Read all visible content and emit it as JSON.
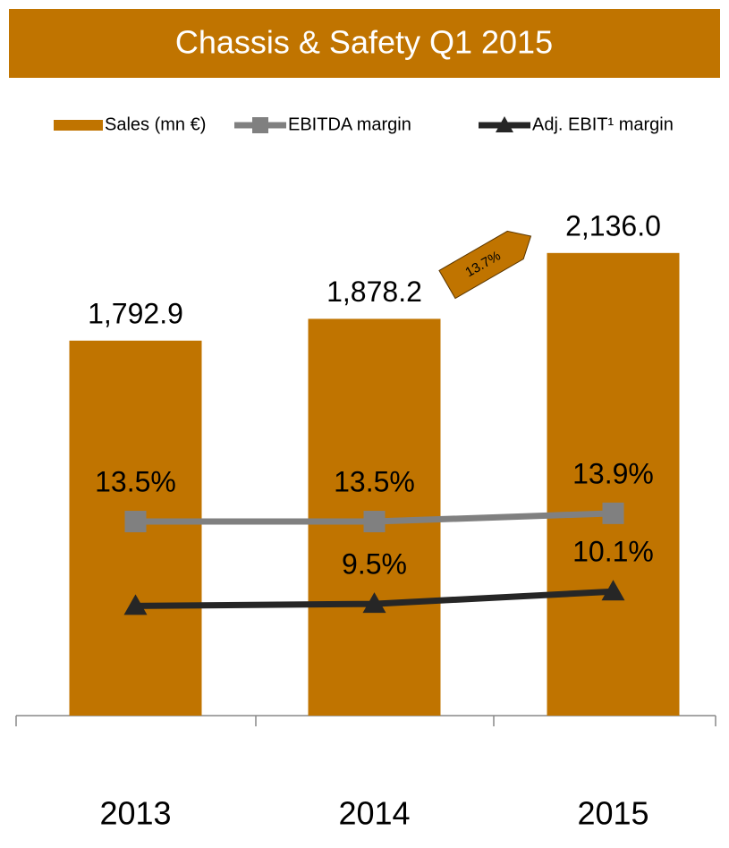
{
  "chart_data": {
    "type": "bar_line",
    "title": "Chassis & Safety Q1 2015",
    "categories": [
      "2013",
      "2014",
      "2015"
    ],
    "series": [
      {
        "name": "Sales (mn €)",
        "type": "bar",
        "color": "#c07400",
        "values": [
          1792.9,
          1878.2,
          2136.0
        ],
        "value_labels": [
          "1,792.9",
          "1,878.2",
          "2,136.0"
        ]
      },
      {
        "name": "EBITDA margin",
        "type": "line",
        "axis": "y2",
        "marker": "square",
        "color": "#808080",
        "values": [
          13.5,
          13.5,
          13.9
        ],
        "value_labels": [
          "13.5%",
          "13.5%",
          "13.9%"
        ]
      },
      {
        "name": "Adj. EBIT¹ margin",
        "type": "line",
        "axis": "y2",
        "marker": "triangle",
        "color": "#262626",
        "values": [
          9.4,
          9.5,
          10.1
        ],
        "value_labels": [
          null,
          "9.5%",
          "10.1%"
        ]
      }
    ],
    "annotations": [
      "13.7%"
    ],
    "ylim": [
      325,
      2426
    ],
    "y2lim": [
      4.07,
      30.15
    ],
    "legend": "top"
  }
}
